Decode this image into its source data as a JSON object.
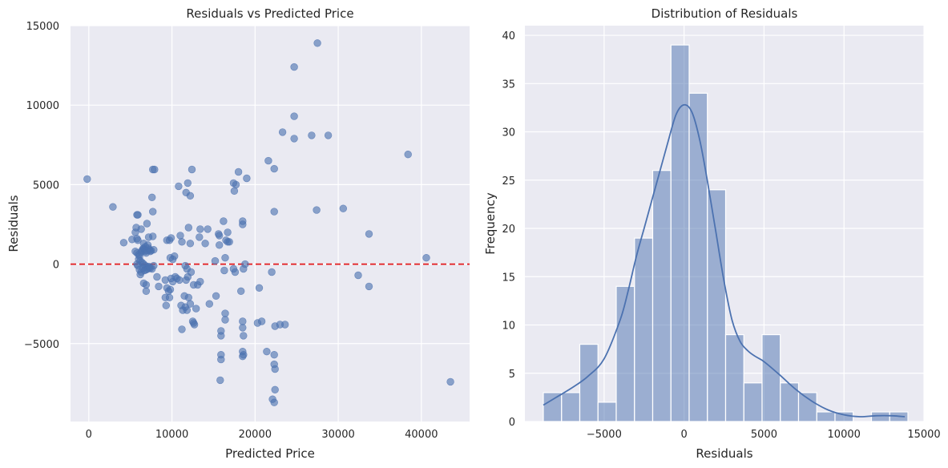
{
  "chart_data": [
    {
      "type": "scatter",
      "title": "Residuals vs Predicted Price",
      "xlabel": "Predicted Price",
      "ylabel": "Residuals",
      "xlim": [
        -2200,
        45800
      ],
      "ylim": [
        -9900,
        15000
      ],
      "xticks": [
        0,
        10000,
        20000,
        30000,
        40000
      ],
      "xtick_labels": [
        "0",
        "10000",
        "20000",
        "30000",
        "40000"
      ],
      "yticks": [
        -5000,
        0,
        5000,
        10000,
        15000
      ],
      "ytick_labels": [
        "−5000",
        "0",
        "5000",
        "10000",
        "15000"
      ],
      "grid": true,
      "reference_line": {
        "y": 0,
        "color": "#e41a1c",
        "style": "dashed"
      },
      "point_color": "#4c72b0",
      "points": [
        [
          -200,
          5350
        ],
        [
          2900,
          3600
        ],
        [
          4200,
          1350
        ],
        [
          5200,
          1550
        ],
        [
          5600,
          2000
        ],
        [
          5700,
          2300
        ],
        [
          5800,
          3100
        ],
        [
          5900,
          3100
        ],
        [
          5800,
          1600
        ],
        [
          5900,
          1500
        ],
        [
          6300,
          2200
        ],
        [
          6600,
          1300
        ],
        [
          6800,
          1100
        ],
        [
          7000,
          2550
        ],
        [
          7200,
          1700
        ],
        [
          7700,
          1750
        ],
        [
          7700,
          5950
        ],
        [
          7900,
          5950
        ],
        [
          7600,
          4200
        ],
        [
          7700,
          3300
        ],
        [
          5600,
          800
        ],
        [
          5800,
          700
        ],
        [
          6000,
          600
        ],
        [
          6100,
          500
        ],
        [
          6300,
          750
        ],
        [
          6400,
          850
        ],
        [
          6500,
          950
        ],
        [
          6600,
          1000
        ],
        [
          6700,
          900
        ],
        [
          6800,
          800
        ],
        [
          6900,
          700
        ],
        [
          7000,
          850
        ],
        [
          7100,
          1200
        ],
        [
          7200,
          1000
        ],
        [
          7300,
          900
        ],
        [
          7400,
          800
        ],
        [
          7500,
          850
        ],
        [
          7800,
          900
        ],
        [
          6000,
          300
        ],
        [
          6200,
          200
        ],
        [
          6400,
          100
        ],
        [
          6600,
          0
        ],
        [
          6800,
          -100
        ],
        [
          7000,
          -200
        ],
        [
          7200,
          -150
        ],
        [
          7400,
          -250
        ],
        [
          7600,
          -300
        ],
        [
          7800,
          -100
        ],
        [
          5900,
          -100
        ],
        [
          6100,
          -350
        ],
        [
          6300,
          -500
        ],
        [
          6500,
          -250
        ],
        [
          6700,
          -400
        ],
        [
          6900,
          -350
        ],
        [
          7100,
          -300
        ],
        [
          7300,
          -200
        ],
        [
          5800,
          0
        ],
        [
          6200,
          -650
        ],
        [
          6600,
          -1200
        ],
        [
          6900,
          -1300
        ],
        [
          6900,
          -1700
        ],
        [
          8200,
          -800
        ],
        [
          8400,
          -1400
        ],
        [
          9200,
          -1000
        ],
        [
          9200,
          -2100
        ],
        [
          9300,
          -2600
        ],
        [
          9400,
          -1500
        ],
        [
          9600,
          -1700
        ],
        [
          9700,
          -2100
        ],
        [
          9800,
          -1600
        ],
        [
          9900,
          -900
        ],
        [
          10100,
          -1100
        ],
        [
          10400,
          -800
        ],
        [
          10600,
          -900
        ],
        [
          10900,
          -1000
        ],
        [
          9400,
          1500
        ],
        [
          9700,
          1500
        ],
        [
          9800,
          400
        ],
        [
          10100,
          300
        ],
        [
          10300,
          500
        ],
        [
          9900,
          1650
        ],
        [
          10800,
          4900
        ],
        [
          11000,
          1800
        ],
        [
          11200,
          1400
        ],
        [
          11600,
          -100
        ],
        [
          11800,
          -300
        ],
        [
          11100,
          -2600
        ],
        [
          11300,
          -2900
        ],
        [
          11500,
          -2000
        ],
        [
          11600,
          -2700
        ],
        [
          11800,
          -2900
        ],
        [
          12000,
          -2100
        ],
        [
          12200,
          -2500
        ],
        [
          11200,
          -4100
        ],
        [
          12600,
          -3700
        ],
        [
          12500,
          -3600
        ],
        [
          12700,
          -3800
        ],
        [
          12900,
          -2800
        ],
        [
          13100,
          -1300
        ],
        [
          13400,
          -1100
        ],
        [
          12600,
          -1300
        ],
        [
          12300,
          -500
        ],
        [
          11900,
          -800
        ],
        [
          11700,
          -1000
        ],
        [
          13300,
          1700
        ],
        [
          13400,
          2200
        ],
        [
          14000,
          1300
        ],
        [
          14300,
          2200
        ],
        [
          14500,
          -2500
        ],
        [
          15200,
          200
        ],
        [
          15300,
          -2000
        ],
        [
          15600,
          1900
        ],
        [
          15700,
          1800
        ],
        [
          15700,
          1200
        ],
        [
          16200,
          2700
        ],
        [
          16500,
          1500
        ],
        [
          16400,
          -3100
        ],
        [
          16400,
          -3500
        ],
        [
          16700,
          2000
        ],
        [
          16900,
          1400
        ],
        [
          15900,
          -4200
        ],
        [
          15900,
          -4500
        ],
        [
          16300,
          -400
        ],
        [
          16400,
          400
        ],
        [
          15900,
          -5700
        ],
        [
          15900,
          -6000
        ],
        [
          15800,
          -7300
        ],
        [
          17400,
          5100
        ],
        [
          17700,
          5000
        ],
        [
          17500,
          4600
        ],
        [
          17600,
          -500
        ],
        [
          18000,
          5800
        ],
        [
          18300,
          -1700
        ],
        [
          18500,
          2700
        ],
        [
          18500,
          2500
        ],
        [
          18600,
          -300
        ],
        [
          18800,
          0
        ],
        [
          18500,
          -3600
        ],
        [
          18500,
          -4000
        ],
        [
          18600,
          -4500
        ],
        [
          18500,
          -5500
        ],
        [
          18600,
          -5700
        ],
        [
          18500,
          -5800
        ],
        [
          19000,
          5400
        ],
        [
          11700,
          4500
        ],
        [
          11900,
          5100
        ],
        [
          12200,
          4300
        ],
        [
          12400,
          5950
        ],
        [
          12000,
          2300
        ],
        [
          12200,
          1300
        ],
        [
          17400,
          -300
        ],
        [
          20500,
          -1500
        ],
        [
          20300,
          -3700
        ],
        [
          20800,
          -3600
        ],
        [
          21400,
          -5500
        ],
        [
          21600,
          6500
        ],
        [
          22300,
          6000
        ],
        [
          22300,
          3300
        ],
        [
          22000,
          -500
        ],
        [
          22400,
          -3900
        ],
        [
          23000,
          -3800
        ],
        [
          22300,
          -5700
        ],
        [
          22300,
          -6300
        ],
        [
          22400,
          -6600
        ],
        [
          22400,
          -7900
        ],
        [
          22100,
          -8500
        ],
        [
          22300,
          -8700
        ],
        [
          23600,
          -3800
        ],
        [
          24700,
          12400
        ],
        [
          24700,
          9300
        ],
        [
          24700,
          7900
        ],
        [
          23300,
          8300
        ],
        [
          26800,
          8100
        ],
        [
          28800,
          8100
        ],
        [
          27500,
          13900
        ],
        [
          27400,
          3400
        ],
        [
          30600,
          3500
        ],
        [
          32400,
          -700
        ],
        [
          33700,
          1900
        ],
        [
          33700,
          -1400
        ],
        [
          38400,
          6900
        ],
        [
          40600,
          400
        ],
        [
          43500,
          -7400
        ],
        [
          16700,
          1400
        ]
      ]
    },
    {
      "type": "bar",
      "title": "Distribution of Residuals",
      "xlabel": "Residuals",
      "ylabel": "Frequency",
      "xlim": [
        -9955,
        15000
      ],
      "ylim": [
        0,
        41
      ],
      "xticks": [
        -5000,
        0,
        5000,
        10000,
        15000
      ],
      "xtick_labels": [
        "−5000",
        "0",
        "5000",
        "10000",
        "15000"
      ],
      "yticks": [
        0,
        5,
        10,
        15,
        20,
        25,
        30,
        35,
        40
      ],
      "ytick_labels": [
        "0",
        "5",
        "10",
        "15",
        "20",
        "25",
        "30",
        "35",
        "40"
      ],
      "grid": true,
      "bar_color": "#4c72b0",
      "bin_start": -8800,
      "bin_width": 1140,
      "values": [
        3,
        3,
        8,
        2,
        14,
        19,
        26,
        39,
        34,
        24,
        9,
        4,
        9,
        4,
        3,
        1,
        1,
        0,
        1,
        1
      ],
      "kde": {
        "color": "#4c72b0",
        "x": [
          -8800,
          -8000,
          -7000,
          -6000,
          -5000,
          -4000,
          -3500,
          -3000,
          -2500,
          -2000,
          -1500,
          -1000,
          -500,
          0,
          500,
          1000,
          1500,
          2000,
          2500,
          3000,
          3500,
          4000,
          4500,
          5000,
          6000,
          7000,
          8000,
          9000,
          10000,
          11000,
          12000,
          13000,
          13800
        ],
        "y": [
          1.7,
          2.5,
          3.5,
          4.7,
          6.5,
          10.5,
          13.5,
          17.0,
          20.0,
          23.0,
          26.0,
          29.0,
          31.8,
          32.8,
          32.0,
          29.0,
          24.5,
          19.5,
          14.5,
          10.5,
          8.3,
          7.3,
          6.7,
          6.2,
          4.8,
          3.3,
          2.1,
          1.2,
          0.7,
          0.5,
          0.6,
          0.6,
          0.5
        ]
      }
    }
  ]
}
